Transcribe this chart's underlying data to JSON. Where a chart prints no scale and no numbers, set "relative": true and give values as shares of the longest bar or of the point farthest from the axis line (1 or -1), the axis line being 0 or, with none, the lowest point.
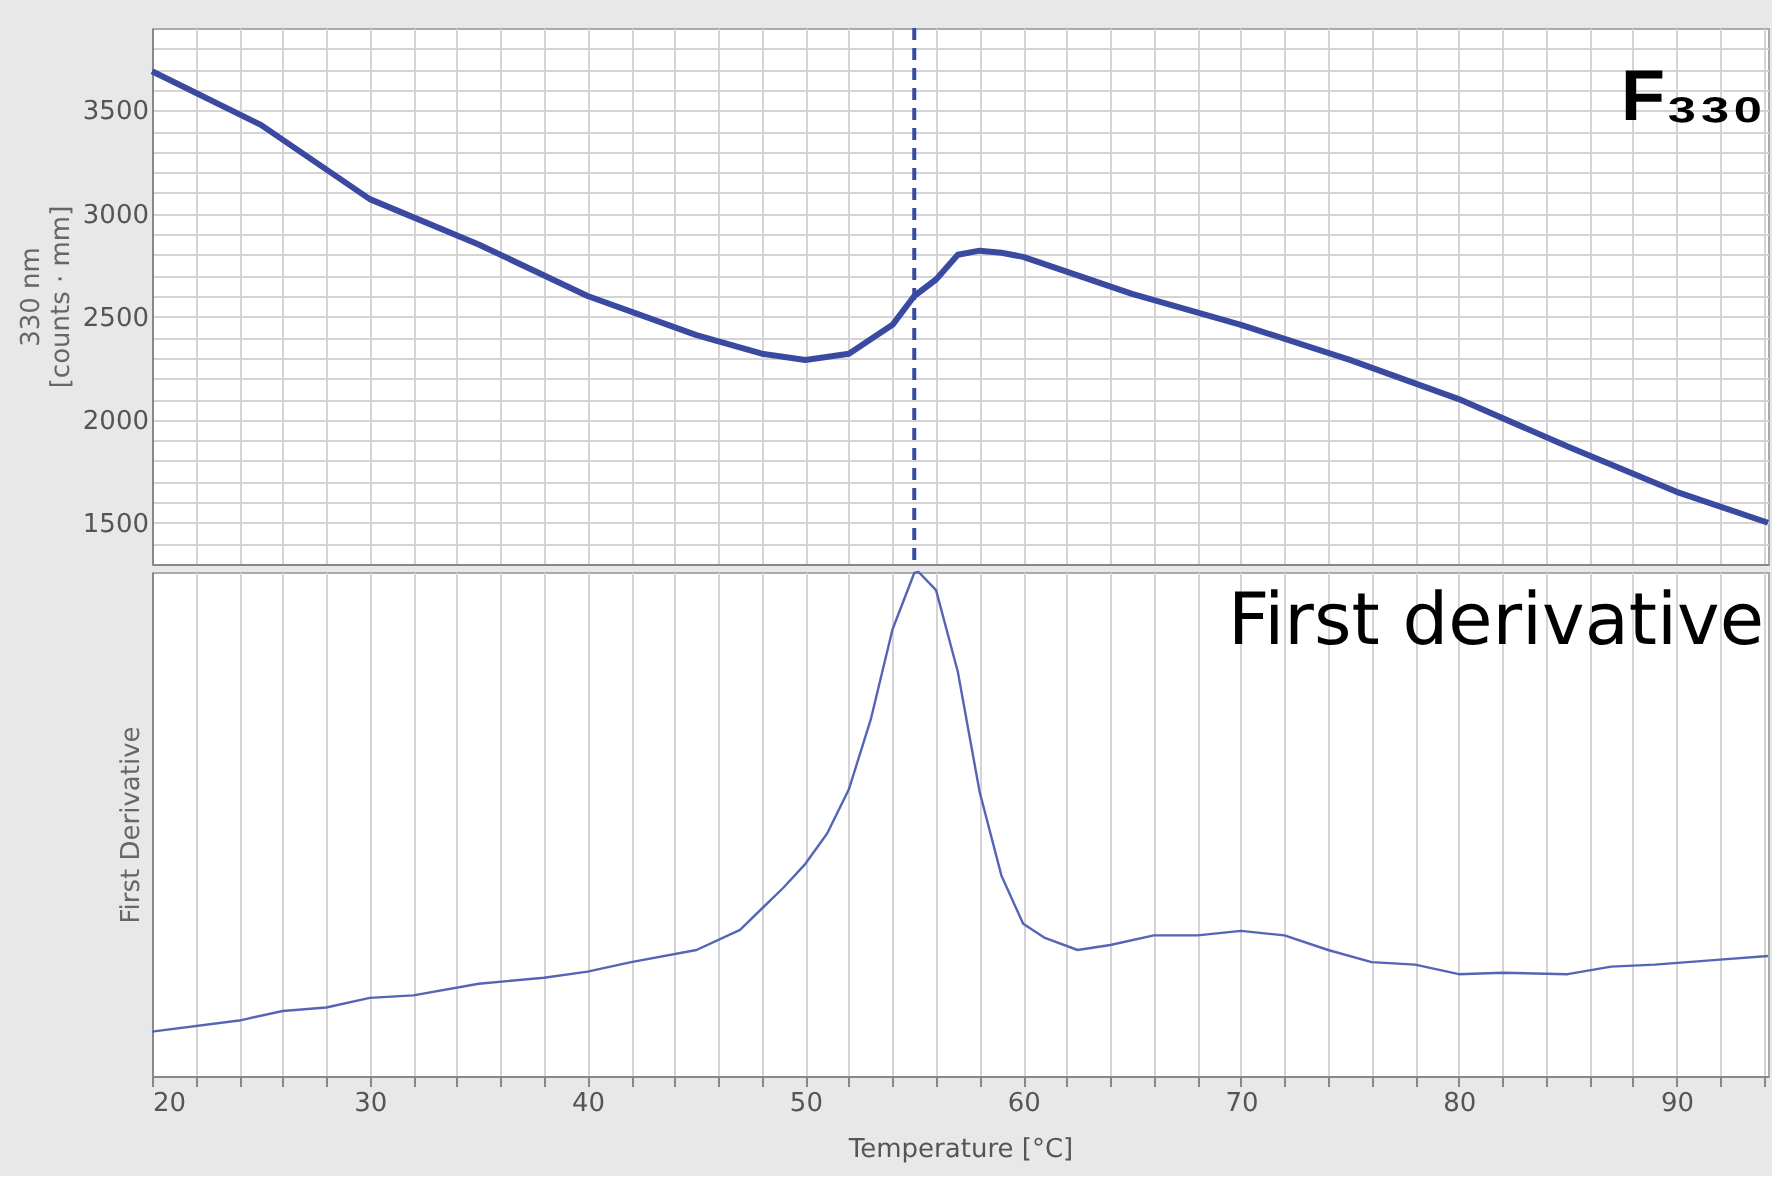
{
  "chart_data": [
    {
      "type": "line",
      "ylabel": "330 nm\n[counts · mm]",
      "annotations": [
        "F₃₃₀"
      ],
      "tick_labels": "y",
      "grid": true,
      "line_style": "solid",
      "marker": "none",
      "xlim": [
        20,
        94.2
      ],
      "xticks": [
        {
          "value": 20,
          "label": null
        },
        {
          "value": 22,
          "label": null
        },
        {
          "value": 24,
          "label": null
        },
        {
          "value": 26,
          "label": null
        },
        {
          "value": 28,
          "label": null
        },
        {
          "value": 30,
          "label": null
        },
        {
          "value": 32,
          "label": null
        },
        {
          "value": 34,
          "label": null
        },
        {
          "value": 36,
          "label": null
        },
        {
          "value": 38,
          "label": null
        },
        {
          "value": 40,
          "label": null
        },
        {
          "value": 42,
          "label": null
        },
        {
          "value": 44,
          "label": null
        },
        {
          "value": 46,
          "label": null
        },
        {
          "value": 48,
          "label": null
        },
        {
          "value": 50,
          "label": null
        },
        {
          "value": 52,
          "label": null
        },
        {
          "value": 54,
          "label": null
        },
        {
          "value": 56,
          "label": null
        },
        {
          "value": 58,
          "label": null
        },
        {
          "value": 60,
          "label": null
        },
        {
          "value": 62,
          "label": null
        },
        {
          "value": 64,
          "label": null
        },
        {
          "value": 66,
          "label": null
        },
        {
          "value": 68,
          "label": null
        },
        {
          "value": 70,
          "label": null
        },
        {
          "value": 72,
          "label": null
        },
        {
          "value": 74,
          "label": null
        },
        {
          "value": 76,
          "label": null
        },
        {
          "value": 78,
          "label": null
        },
        {
          "value": 80,
          "label": null
        },
        {
          "value": 82,
          "label": null
        },
        {
          "value": 84,
          "label": null
        },
        {
          "value": 86,
          "label": null
        },
        {
          "value": 88,
          "label": null
        },
        {
          "value": 90,
          "label": null
        },
        {
          "value": 92,
          "label": null
        },
        {
          "value": 94,
          "label": null
        }
      ],
      "ylim": [
        1300,
        3900
      ],
      "yticks": [
        {
          "value": 1400,
          "label": null
        },
        1500,
        {
          "value": 1600,
          "label": null
        },
        {
          "value": 1700,
          "label": null
        },
        {
          "value": 1800,
          "label": null
        },
        {
          "value": 1900,
          "label": null
        },
        2000,
        {
          "value": 2100,
          "label": null
        },
        {
          "value": 2200,
          "label": null
        },
        {
          "value": 2300,
          "label": null
        },
        {
          "value": 2400,
          "label": null
        },
        2500,
        {
          "value": 2600,
          "label": null
        },
        {
          "value": 2700,
          "label": null
        },
        {
          "value": 2800,
          "label": null
        },
        {
          "value": 2900,
          "label": null
        },
        3000,
        {
          "value": 3100,
          "label": null
        },
        {
          "value": 3200,
          "label": null
        },
        {
          "value": 3300,
          "label": null
        },
        {
          "value": 3400,
          "label": null
        },
        3500,
        {
          "value": 3600,
          "label": null
        },
        {
          "value": 3700,
          "label": null
        },
        {
          "value": 3800,
          "label": null
        }
      ],
      "ref_lines": [
        {
          "axis": "x",
          "value": 55,
          "color": "#3a4aa0",
          "line_style": "dashed"
        }
      ],
      "series": [
        {
          "color": "#3a4aa0",
          "x": [
            20,
            25,
            30,
            35,
            40,
            45,
            48,
            50,
            52,
            54,
            55,
            56,
            57,
            58,
            59,
            60,
            65,
            70,
            75,
            80,
            85,
            90,
            94.2
          ],
          "values": [
            3690,
            3430,
            3070,
            2850,
            2600,
            2410,
            2320,
            2290,
            2320,
            2460,
            2600,
            2680,
            2800,
            2820,
            2810,
            2790,
            2610,
            2460,
            2290,
            2100,
            1870,
            1650,
            1500
          ]
        }
      ]
    },
    {
      "type": "line",
      "relative": true,
      "ylabel": "First Derivative",
      "xlabel": "Temperature [°C]",
      "annotations": [
        "First derivative"
      ],
      "tick_labels": "x",
      "grid": "x",
      "line_style": "solid",
      "marker": "none",
      "xlim": [
        20,
        94.2
      ],
      "xticks": [
        {
          "value": 20,
          "label": "20"
        },
        {
          "value": 22,
          "label": null
        },
        {
          "value": 24,
          "label": null
        },
        {
          "value": 26,
          "label": null
        },
        {
          "value": 28,
          "label": null
        },
        {
          "value": 30,
          "label": "30"
        },
        {
          "value": 32,
          "label": null
        },
        {
          "value": 34,
          "label": null
        },
        {
          "value": 36,
          "label": null
        },
        {
          "value": 38,
          "label": null
        },
        {
          "value": 40,
          "label": "40"
        },
        {
          "value": 42,
          "label": null
        },
        {
          "value": 44,
          "label": null
        },
        {
          "value": 46,
          "label": null
        },
        {
          "value": 48,
          "label": null
        },
        {
          "value": 50,
          "label": "50"
        },
        {
          "value": 52,
          "label": null
        },
        {
          "value": 54,
          "label": null
        },
        {
          "value": 56,
          "label": null
        },
        {
          "value": 58,
          "label": null
        },
        {
          "value": 60,
          "label": "60"
        },
        {
          "value": 62,
          "label": null
        },
        {
          "value": 64,
          "label": null
        },
        {
          "value": 66,
          "label": null
        },
        {
          "value": 68,
          "label": null
        },
        {
          "value": 70,
          "label": "70"
        },
        {
          "value": 72,
          "label": null
        },
        {
          "value": 74,
          "label": null
        },
        {
          "value": 76,
          "label": null
        },
        {
          "value": 78,
          "label": null
        },
        {
          "value": 80,
          "label": "80"
        },
        {
          "value": 82,
          "label": null
        },
        {
          "value": 84,
          "label": null
        },
        {
          "value": 86,
          "label": null
        },
        {
          "value": 88,
          "label": null
        },
        {
          "value": 90,
          "label": "90"
        },
        {
          "value": 92,
          "label": null
        },
        {
          "value": 94,
          "label": null
        }
      ],
      "series": [
        {
          "color": "#5565b5",
          "x": [
            20,
            24,
            26,
            28,
            30,
            32,
            35,
            38,
            40,
            42,
            45,
            47,
            49,
            50,
            51,
            52,
            53,
            54,
            55,
            55.2,
            56,
            57,
            58,
            59,
            60,
            61,
            62.5,
            64,
            66,
            68,
            70,
            72,
            74,
            76,
            78,
            80,
            82,
            85,
            87,
            89,
            92,
            94.2
          ],
          "values": [
            0.088,
            0.11,
            0.129,
            0.136,
            0.155,
            0.16,
            0.183,
            0.195,
            0.207,
            0.226,
            0.25,
            0.29,
            0.374,
            0.421,
            0.481,
            0.569,
            0.707,
            0.886,
            0.998,
            1,
            0.964,
            0.802,
            0.564,
            0.398,
            0.302,
            0.274,
            0.25,
            0.26,
            0.279,
            0.279,
            0.288,
            0.279,
            0.25,
            0.226,
            0.221,
            0.202,
            0.205,
            0.202,
            0.217,
            0.221,
            0.231,
            0.238
          ]
        }
      ]
    }
  ]
}
